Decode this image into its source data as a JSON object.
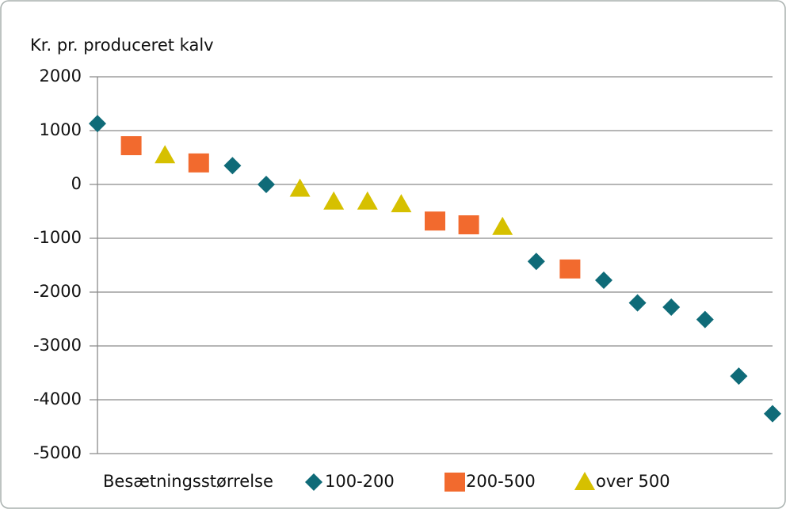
{
  "chart_data": {
    "type": "scatter",
    "y_label": "Kr. pr. produceret kalv",
    "legend_title": "Besætningsstørrelse",
    "xlim": [
      1,
      21
    ],
    "ylim": [
      -5000,
      2000
    ],
    "yticks": [
      -5000,
      -4000,
      -3000,
      -2000,
      -1000,
      0,
      1000,
      2000
    ],
    "grid": true,
    "legend": "bottom",
    "series": [
      {
        "name": "100-200",
        "color": "#0f6b78",
        "marker": "diamond",
        "x": [
          1,
          5,
          6,
          14,
          16,
          17,
          18,
          19,
          20,
          21
        ],
        "values": [
          1130,
          350,
          0,
          -1430,
          -1780,
          -2200,
          -2280,
          -2510,
          -3560,
          -4260
        ]
      },
      {
        "name": "200-500",
        "color": "#f26a2e",
        "marker": "square",
        "x": [
          2,
          4,
          11,
          12,
          15
        ],
        "values": [
          720,
          400,
          -680,
          -750,
          -1570
        ]
      },
      {
        "name": "over 500",
        "color": "#d6c000",
        "marker": "triangle",
        "x": [
          3,
          7,
          8,
          9,
          10,
          13
        ],
        "values": [
          540,
          -80,
          -320,
          -320,
          -370,
          -790
        ]
      }
    ]
  }
}
